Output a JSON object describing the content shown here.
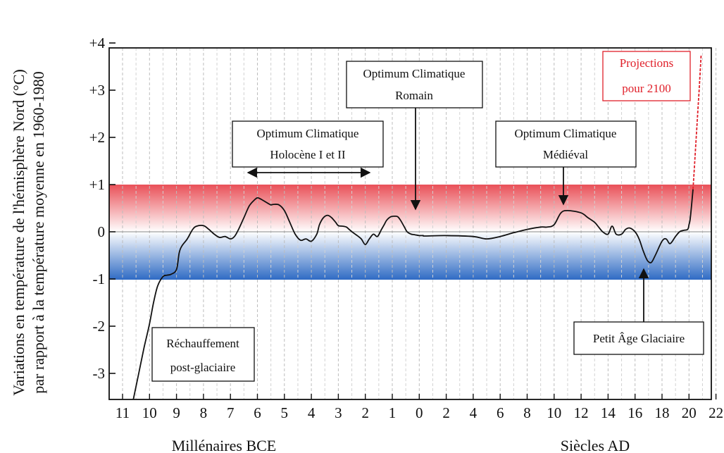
{
  "chart_data": {
    "type": "line",
    "ylabel_line1": "Variations en température de l'hémisphère Nord (°C)",
    "ylabel_line2": "par rapport à la température moyenne en 1960-1980",
    "xlabel_left": "Millénaires BCE",
    "xlabel_right": "Siècles AD",
    "y_ticks": [
      "+4",
      "+3",
      "+2",
      "+1",
      "0",
      "-1",
      "-2",
      "-3"
    ],
    "ylim": [
      -3.6,
      4.1
    ],
    "x_ticks": [
      "11",
      "10",
      "9",
      "8",
      "7",
      "6",
      "5",
      "4",
      "3",
      "2",
      "1",
      "0",
      "2",
      "4",
      "6",
      "8",
      "10",
      "12",
      "14",
      "16",
      "18",
      "20",
      "22"
    ],
    "shaded_bands": [
      {
        "from": 0,
        "to": 1,
        "color": "#e8474f"
      },
      {
        "from": -1,
        "to": 0,
        "color": "#2f6bc4"
      }
    ],
    "series": [
      {
        "x": [
          10.6,
          10.4,
          10.2,
          10.0,
          9.85,
          9.7,
          9.5,
          9.35,
          9.2,
          9.0,
          8.9,
          8.8,
          8.6,
          8.4,
          8.25,
          8.0,
          7.8,
          7.6,
          7.4,
          7.2,
          7.0,
          6.85,
          6.7,
          6.5,
          6.3,
          6.1,
          6.0,
          5.9,
          5.75,
          5.6,
          5.5,
          5.4,
          5.2,
          5.0,
          4.8,
          4.6,
          4.4,
          4.2,
          4.0,
          3.8,
          3.7,
          3.55,
          3.4,
          3.25,
          3.1,
          3.0,
          2.85,
          2.7,
          2.6,
          2.45,
          2.3,
          2.15,
          2.0,
          1.85,
          1.7,
          1.55,
          1.4,
          1.3,
          1.2,
          1.05,
          0.9,
          0.8,
          0.7,
          0.55,
          0.45,
          0.3,
          0.2,
          0.1,
          0.0,
          -0.1,
          -0.2,
          -0.3,
          -0.45
        ],
        "y": [
          -3.55,
          -3.0,
          -2.45,
          -1.95,
          -1.5,
          -1.15,
          -0.95,
          -0.92,
          -0.9,
          -0.8,
          -0.45,
          -0.3,
          -0.15,
          0.05,
          0.12,
          0.13,
          0.05,
          -0.05,
          -0.12,
          -0.1,
          -0.15,
          -0.1,
          0.05,
          0.3,
          0.55,
          0.68,
          0.72,
          0.7,
          0.65,
          0.6,
          0.57,
          0.58,
          0.57,
          0.45,
          0.2,
          -0.05,
          -0.18,
          -0.15,
          -0.2,
          -0.05,
          0.15,
          0.3,
          0.35,
          0.3,
          0.2,
          0.13,
          0.12,
          0.1,
          0.05,
          -0.02,
          -0.08,
          -0.15,
          -0.27,
          -0.15,
          -0.05,
          -0.1,
          0.05,
          0.15,
          0.25,
          0.32,
          0.33,
          0.32,
          0.25,
          0.1,
          0.0,
          -0.05,
          -0.06,
          -0.07,
          -0.08,
          -0.08,
          -0.08,
          -0.08,
          -0.09
        ]
      },
      {
        "x": [
          0,
          2,
          4,
          5,
          6,
          7,
          8,
          9,
          9.5,
          10,
          10.5,
          11,
          12,
          12.5,
          13,
          13.3,
          13.6,
          14,
          14.3,
          14.6,
          15,
          15.3,
          15.6,
          16,
          16.3,
          16.6,
          16.9,
          17.2,
          17.5,
          18,
          18.3,
          18.6,
          19,
          19.3,
          19.6,
          19.9,
          20,
          20.1,
          20.3
        ],
        "y": [
          -0.08,
          -0.08,
          -0.1,
          -0.15,
          -0.1,
          -0.02,
          0.05,
          0.1,
          0.1,
          0.15,
          0.4,
          0.45,
          0.4,
          0.3,
          0.2,
          0.1,
          0.0,
          -0.05,
          0.12,
          -0.05,
          -0.05,
          0.05,
          0.08,
          0.0,
          -0.15,
          -0.4,
          -0.6,
          -0.65,
          -0.5,
          -0.2,
          -0.15,
          -0.25,
          -0.1,
          0.0,
          0.03,
          0.05,
          0.15,
          0.3,
          0.9
        ]
      },
      {
        "x": [
          20.3,
          20.45,
          20.6,
          20.75,
          20.9
        ],
        "y": [
          0.9,
          1.6,
          2.3,
          3.0,
          3.75
        ]
      }
    ],
    "annotations": [
      {
        "lines": [
          "Optimum Climatique",
          "Holocène I et II"
        ]
      },
      {
        "lines": [
          "Optimum Climatique",
          "Romain"
        ]
      },
      {
        "lines": [
          "Optimum Climatique",
          "Médiéval"
        ]
      },
      {
        "lines": [
          "Réchauffement",
          "post-glaciaire"
        ]
      },
      {
        "lines": [
          "Petit Âge Glaciaire"
        ]
      },
      {
        "lines": [
          "Projections",
          "pour 2100"
        ],
        "color": "#e0202a"
      }
    ]
  }
}
